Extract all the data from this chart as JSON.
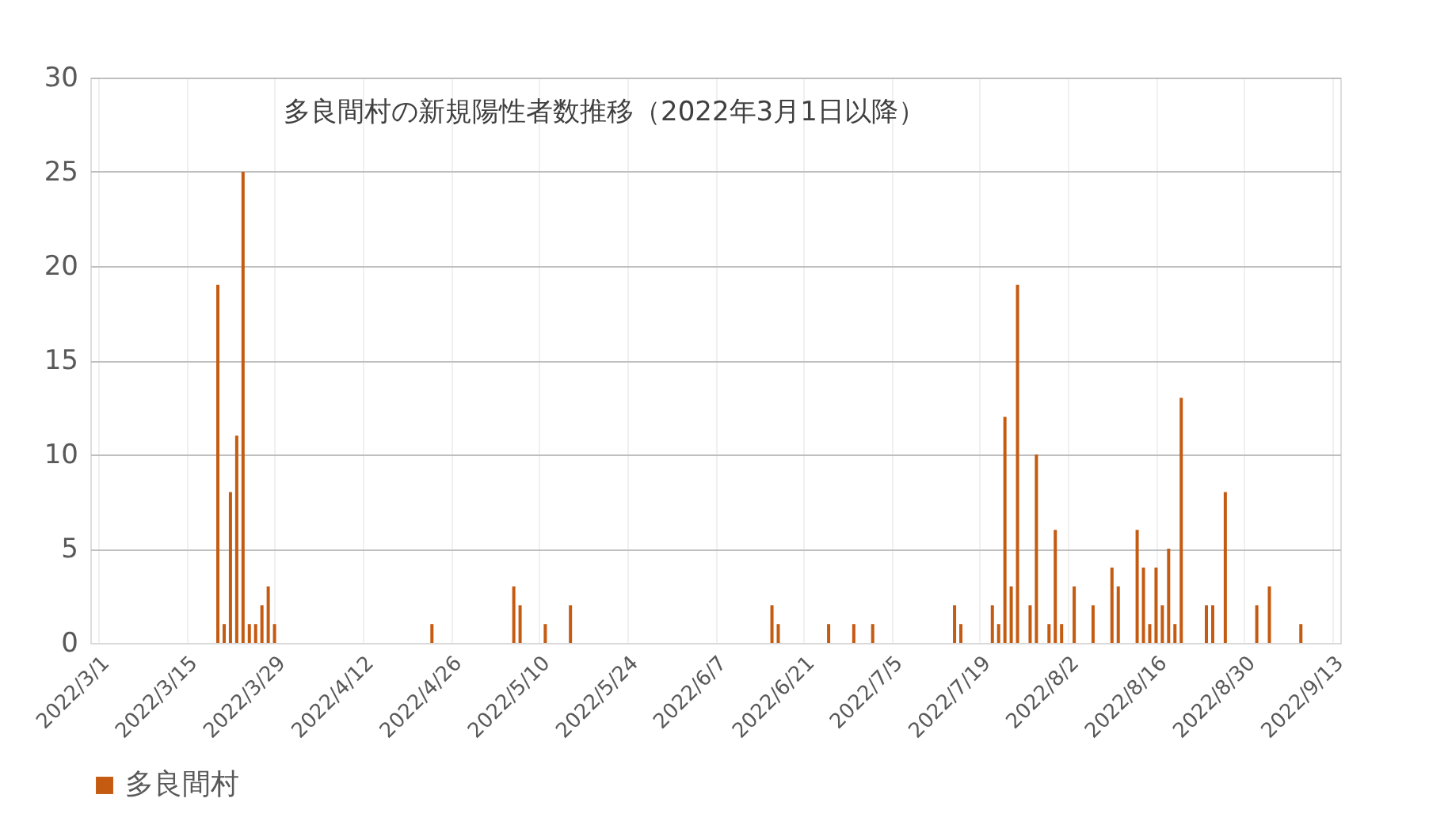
{
  "chart_data": {
    "type": "bar",
    "title": "多良間村の新規陽性者数推移（2022年3月1日以降）",
    "x": [
      "2022-03-20",
      "2022-03-21",
      "2022-03-22",
      "2022-03-23",
      "2022-03-24",
      "2022-03-25",
      "2022-03-26",
      "2022-03-27",
      "2022-03-28",
      "2022-03-29",
      "2022-04-23",
      "2022-05-06",
      "2022-05-07",
      "2022-05-11",
      "2022-05-15",
      "2022-06-16",
      "2022-06-17",
      "2022-06-25",
      "2022-06-29",
      "2022-07-02",
      "2022-07-15",
      "2022-07-16",
      "2022-07-21",
      "2022-07-22",
      "2022-07-23",
      "2022-07-24",
      "2022-07-25",
      "2022-07-27",
      "2022-07-28",
      "2022-07-30",
      "2022-07-31",
      "2022-08-01",
      "2022-08-03",
      "2022-08-06",
      "2022-08-09",
      "2022-08-10",
      "2022-08-13",
      "2022-08-14",
      "2022-08-15",
      "2022-08-16",
      "2022-08-17",
      "2022-08-18",
      "2022-08-19",
      "2022-08-20",
      "2022-08-24",
      "2022-08-25",
      "2022-08-27",
      "2022-09-01",
      "2022-09-03",
      "2022-09-08"
    ],
    "series": [
      {
        "name": "多良間村",
        "color": "#c55a11",
        "values": [
          19,
          1,
          8,
          11,
          25,
          1,
          1,
          2,
          3,
          1,
          1,
          3,
          2,
          1,
          2,
          2,
          1,
          1,
          1,
          1,
          2,
          1,
          2,
          1,
          12,
          3,
          19,
          2,
          10,
          1,
          6,
          1,
          3,
          2,
          4,
          3,
          6,
          4,
          1,
          4,
          2,
          5,
          1,
          13,
          2,
          2,
          8,
          2,
          3,
          1
        ]
      }
    ],
    "xlim": [
      "2022-03-01",
      "2022-09-13"
    ],
    "xticks": [
      {
        "value": "2022-03-01",
        "label": "2022/3/1"
      },
      {
        "value": "2022-03-15",
        "label": "2022/3/15"
      },
      {
        "value": "2022-03-29",
        "label": "2022/3/29"
      },
      {
        "value": "2022-04-12",
        "label": "2022/4/12"
      },
      {
        "value": "2022-04-26",
        "label": "2022/4/26"
      },
      {
        "value": "2022-05-10",
        "label": "2022/5/10"
      },
      {
        "value": "2022-05-24",
        "label": "2022/5/24"
      },
      {
        "value": "2022-06-07",
        "label": "2022/6/7"
      },
      {
        "value": "2022-06-21",
        "label": "2022/6/21"
      },
      {
        "value": "2022-07-05",
        "label": "2022/7/5"
      },
      {
        "value": "2022-07-19",
        "label": "2022/7/19"
      },
      {
        "value": "2022-08-02",
        "label": "2022/8/2"
      },
      {
        "value": "2022-08-16",
        "label": "2022/8/16"
      },
      {
        "value": "2022-08-30",
        "label": "2022/8/30"
      },
      {
        "value": "2022-09-13",
        "label": "2022/9/13"
      }
    ],
    "ylim": [
      0,
      30
    ],
    "yticks": [
      0,
      5,
      10,
      15,
      20,
      25,
      30
    ],
    "grid": true,
    "legend": "bottom"
  }
}
